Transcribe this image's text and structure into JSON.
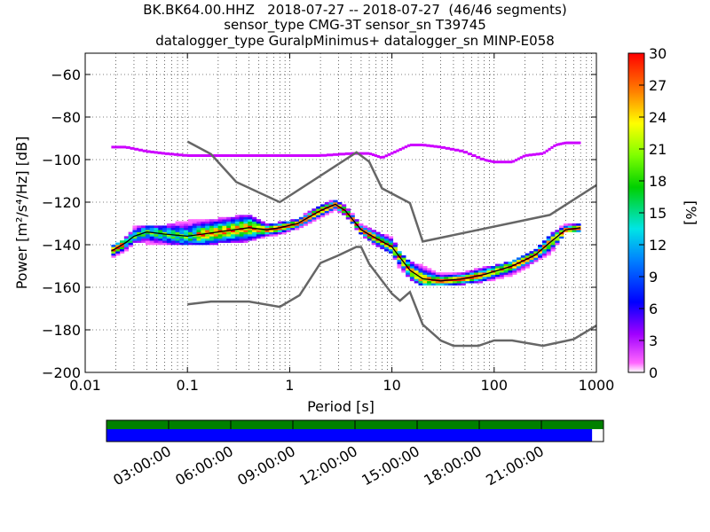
{
  "title": {
    "line1": "BK.BK64.00.HHZ   2018-07-27 -- 2018-07-27  (46/46 segments)",
    "line2": "sensor_type CMG-3T sensor_sn T39745",
    "line3": "datalogger_type GuralpMinimus+ datalogger_sn MINP-E058"
  },
  "colors": {
    "model_lines": "#666666",
    "coverage_top": "#008000",
    "coverage_bottom": "#0000ff",
    "mode_line": "#000000"
  },
  "chart_data": [
    {
      "type": "heatmap",
      "xlabel": "Period [s]",
      "ylabel": "Power [m²/s⁴/Hz] [dB]",
      "xscale": "log",
      "xlim": [
        0.01,
        1000
      ],
      "ylim": [
        -200,
        -50
      ],
      "xticks": [
        {
          "value": 0.01,
          "label": "0.01"
        },
        {
          "value": 0.1,
          "label": "0.1"
        },
        {
          "value": 1,
          "label": "1"
        },
        {
          "value": 10,
          "label": "10"
        },
        {
          "value": 100,
          "label": "100"
        },
        {
          "value": 1000,
          "label": "1000"
        }
      ],
      "yticks": [
        -60,
        -80,
        -100,
        -120,
        -140,
        -160,
        -180,
        -200
      ],
      "grid": true,
      "colorbar": {
        "label": "[%]",
        "range": [
          0,
          30
        ],
        "ticks": [
          0,
          3,
          6,
          9,
          12,
          15,
          18,
          21,
          24,
          27,
          30
        ]
      },
      "noise_model_high": {
        "x": [
          0.1,
          0.17,
          0.3,
          0.8,
          4.5,
          6,
          8,
          15,
          20,
          350,
          1000
        ],
        "y": [
          -91.5,
          -97.4,
          -110.5,
          -120,
          -96.6,
          -101,
          -113.5,
          -120.4,
          -138.5,
          -126,
          -112
        ]
      },
      "noise_model_low": {
        "x": [
          0.1,
          0.17,
          0.4,
          0.8,
          1.25,
          2,
          3,
          4.5,
          5,
          6,
          10,
          12,
          15,
          20,
          30,
          40,
          70,
          100,
          150,
          300,
          600,
          1000
        ],
        "y": [
          -168,
          -166.7,
          -166.7,
          -169.2,
          -163.7,
          -148.6,
          -145,
          -141,
          -141.1,
          -149,
          -163,
          -166.3,
          -162.2,
          -177.5,
          -185,
          -187.5,
          -187.5,
          -185,
          -185,
          -187.5,
          -184.4,
          -178
        ]
      },
      "mode": {
        "x": [
          0.018,
          0.025,
          0.03,
          0.04,
          0.06,
          0.1,
          0.2,
          0.4,
          0.6,
          0.8,
          1.2,
          2,
          2.8,
          3.5,
          5,
          7,
          10,
          12,
          15,
          20,
          30,
          50,
          80,
          150,
          250,
          350,
          500,
          700
        ],
        "y": [
          -143,
          -139,
          -136,
          -134,
          -135,
          -136,
          -134,
          -132,
          -133,
          -132,
          -130,
          -124,
          -121,
          -124,
          -133,
          -137,
          -141,
          -146,
          -152,
          -156,
          -157,
          -156,
          -154,
          -150,
          -145,
          -139,
          -133,
          -132
        ]
      },
      "percentile_low": {
        "x": [
          0.018,
          0.025,
          0.03,
          0.04,
          0.06,
          0.1,
          0.2,
          0.4,
          0.6,
          0.8,
          1.2,
          2,
          2.8,
          3.5,
          5,
          7,
          10,
          12,
          15,
          20,
          30,
          50,
          80,
          150,
          250,
          350,
          500,
          700
        ],
        "y": [
          -146,
          -143,
          -139,
          -139,
          -140,
          -140,
          -139,
          -138,
          -136,
          -135,
          -132,
          -127,
          -123,
          -126,
          -135,
          -140,
          -144,
          -151,
          -156,
          -159,
          -159,
          -158,
          -157,
          -154,
          -148,
          -144,
          -134,
          -134
        ]
      },
      "percentile_high": {
        "x": [
          0.018,
          0.025,
          0.03,
          0.04,
          0.06,
          0.1,
          0.2,
          0.4,
          0.6,
          0.8,
          1.2,
          2,
          2.8,
          3.5,
          5,
          7,
          10,
          12,
          15,
          20,
          30,
          50,
          80,
          150,
          250,
          350,
          500,
          700
        ],
        "y": [
          -141,
          -137,
          -132,
          -131,
          -131,
          -129,
          -128,
          -126,
          -131,
          -130,
          -128,
          -122,
          -119,
          -122,
          -131,
          -134,
          -137,
          -144,
          -148,
          -150,
          -154,
          -153,
          -151,
          -148,
          -143,
          -136,
          -130,
          -130
        ]
      },
      "outlier_band": {
        "x": [
          0.018,
          0.025,
          0.04,
          0.06,
          0.1,
          0.2,
          0.3,
          0.5,
          1,
          2,
          4,
          6,
          8,
          11,
          15,
          20,
          30,
          50,
          80,
          100,
          150,
          200,
          300,
          400,
          500,
          700
        ],
        "y": [
          -94,
          -94,
          -96,
          -97,
          -98,
          -98,
          -98,
          -98,
          -98,
          -98,
          -97,
          -97,
          -99,
          -96,
          -93,
          -93,
          -94,
          -96,
          -100,
          -101,
          -101,
          -98,
          -97,
          -93,
          -92,
          -92
        ]
      }
    },
    {
      "type": "timeline",
      "tick_labels": [
        "03:00:00",
        "06:00:00",
        "09:00:00",
        "12:00:00",
        "15:00:00",
        "18:00:00",
        "21:00:00"
      ],
      "tick_hours": [
        3,
        6,
        9,
        12,
        15,
        18,
        21
      ],
      "range_hours": [
        0,
        24
      ],
      "coverage_top_fraction": 1.0,
      "coverage_bottom_fraction": 0.977
    }
  ]
}
